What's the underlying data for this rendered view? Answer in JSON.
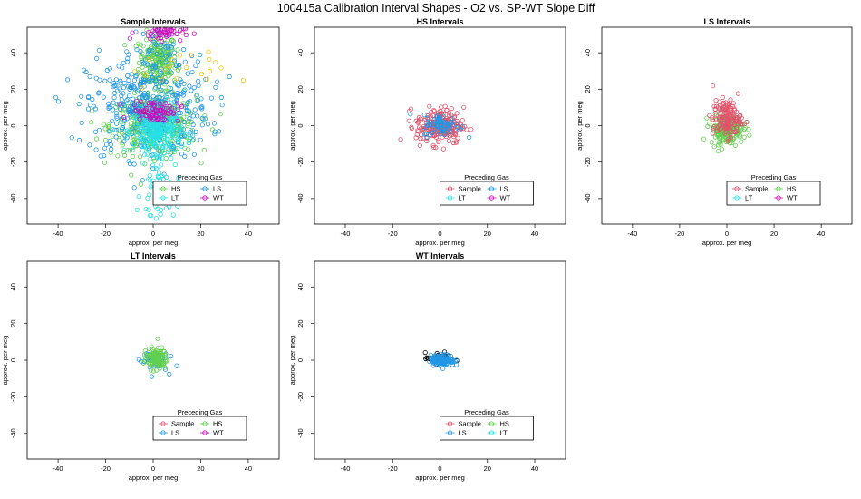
{
  "figure": {
    "title": "100415a   Calibration Interval Shapes - O2 vs. SP-WT Slope Diff"
  },
  "chart_data": [
    {
      "type": "scatter",
      "title": "Sample Intervals",
      "xlabel": "approx. per meg",
      "ylabel": "approx. per meg",
      "xlim": [
        -53,
        53
      ],
      "ylim": [
        -54,
        54
      ],
      "xticks": [
        "-40",
        "-20",
        "0",
        "20",
        "40"
      ],
      "yticks": [
        "-40",
        "-20",
        "0",
        "20",
        "40"
      ],
      "legend": {
        "title": "Preceding Gas",
        "entries": [
          "HS",
          "LS",
          "LT",
          "WT"
        ],
        "colors": [
          "#61d04f",
          "#2297e6",
          "#28e2e5",
          "#cd0bbc"
        ],
        "placement": "bottom-right"
      },
      "series": [
        {
          "name": "HS",
          "color": "#61d04f",
          "clusters": [
            {
              "cx": 2,
              "cy": 35,
              "sx": 4,
              "sy": 8,
              "n": 220
            },
            {
              "cx": 0,
              "cy": 0,
              "sx": 9,
              "sy": 8,
              "n": 380
            }
          ]
        },
        {
          "name": "LS",
          "color": "#2297e6",
          "clusters": [
            {
              "cx": -2,
              "cy": 10,
              "sx": 13,
              "sy": 14,
              "n": 420
            },
            {
              "cx": 3,
              "cy": 42,
              "sx": 6,
              "sy": 6,
              "n": 40
            }
          ]
        },
        {
          "name": "LT",
          "color": "#28e2e5",
          "clusters": [
            {
              "cx": 2,
              "cy": -3,
              "sx": 5,
              "sy": 6,
              "n": 260
            },
            {
              "cx": 3,
              "cy": -37,
              "sx": 4,
              "sy": 10,
              "n": 70
            }
          ]
        },
        {
          "name": "WT",
          "color": "#cd0bbc",
          "clusters": [
            {
              "cx": 1,
              "cy": 8,
              "sx": 5,
              "sy": 3,
              "n": 80
            },
            {
              "cx": 3,
              "cy": 51,
              "sx": 5,
              "sy": 2,
              "n": 50
            }
          ]
        },
        {
          "name": "",
          "color": "#f5c710",
          "clusters": [
            {
              "cx": 10,
              "cy": 30,
              "sx": 10,
              "sy": 5,
              "n": 20
            }
          ]
        }
      ]
    },
    {
      "type": "scatter",
      "title": "HS Intervals",
      "xlabel": "approx. per meg",
      "ylabel": "approx. per meg",
      "xlim": [
        -53,
        53
      ],
      "ylim": [
        -54,
        54
      ],
      "xticks": [
        "-40",
        "-20",
        "0",
        "20",
        "40"
      ],
      "yticks": [
        "-40",
        "-20",
        "0",
        "20",
        "40"
      ],
      "legend": {
        "title": "Preceding Gas",
        "entries": [
          "Sample",
          "LS",
          "LT",
          "WT"
        ],
        "colors": [
          "#df536b",
          "#2297e6",
          "#28e2e5",
          "#cd0bbc"
        ],
        "placement": "bottom-right"
      },
      "series": [
        {
          "name": "Sample",
          "color": "#df536b",
          "clusters": [
            {
              "cx": 0,
              "cy": 0,
              "sx": 5,
              "sy": 5,
              "n": 220
            }
          ]
        },
        {
          "name": "LS",
          "color": "#2297e6",
          "clusters": [
            {
              "cx": 1,
              "cy": 0,
              "sx": 4,
              "sy": 3,
              "n": 70
            }
          ]
        }
      ]
    },
    {
      "type": "scatter",
      "title": "LS Intervals",
      "xlabel": "approx. per meg",
      "ylabel": "approx. per meg",
      "xlim": [
        -53,
        53
      ],
      "ylim": [
        -54,
        54
      ],
      "xticks": [
        "-40",
        "-20",
        "0",
        "20",
        "40"
      ],
      "yticks": [
        "-40",
        "-20",
        "0",
        "20",
        "40"
      ],
      "legend": {
        "title": "Preceding Gas",
        "entries": [
          "Sample",
          "HS",
          "LT",
          "WT"
        ],
        "colors": [
          "#df536b",
          "#61d04f",
          "#28e2e5",
          "#cd0bbc"
        ],
        "placement": "bottom-right"
      },
      "series": [
        {
          "name": "HS",
          "color": "#61d04f",
          "clusters": [
            {
              "cx": 0,
              "cy": -2,
              "sx": 3.5,
              "sy": 4,
              "n": 180
            }
          ]
        },
        {
          "name": "Sample",
          "color": "#df536b",
          "clusters": [
            {
              "cx": 0,
              "cy": 4,
              "sx": 3,
              "sy": 5,
              "n": 150
            }
          ]
        }
      ]
    },
    {
      "type": "scatter",
      "title": "LT Intervals",
      "xlabel": "approx. per meg",
      "ylabel": "approx. per meg",
      "xlim": [
        -53,
        53
      ],
      "ylim": [
        -54,
        54
      ],
      "xticks": [
        "-40",
        "-20",
        "0",
        "20",
        "40"
      ],
      "yticks": [
        "-40",
        "-20",
        "0",
        "20",
        "40"
      ],
      "legend": {
        "title": "Preceding Gas",
        "entries": [
          "Sample",
          "HS",
          "LS",
          "WT"
        ],
        "colors": [
          "#df536b",
          "#61d04f",
          "#2297e6",
          "#cd0bbc"
        ],
        "placement": "bottom-right"
      },
      "series": [
        {
          "name": "LS",
          "color": "#2297e6",
          "clusters": [
            {
              "cx": 0,
              "cy": 0,
              "sx": 3,
              "sy": 3,
              "n": 40
            }
          ]
        },
        {
          "name": "HS",
          "color": "#61d04f",
          "clusters": [
            {
              "cx": 1,
              "cy": 1,
              "sx": 2.5,
              "sy": 3,
              "n": 110
            }
          ]
        }
      ]
    },
    {
      "type": "scatter",
      "title": "WT Intervals",
      "xlabel": "approx. per meg",
      "ylabel": "approx. per meg",
      "xlim": [
        -53,
        53
      ],
      "ylim": [
        -54,
        54
      ],
      "xticks": [
        "-40",
        "-20",
        "0",
        "20",
        "40"
      ],
      "yticks": [
        "-40",
        "-20",
        "0",
        "20",
        "40"
      ],
      "legend": {
        "title": "Preceding Gas",
        "entries": [
          "Sample",
          "HS",
          "LS",
          "LT"
        ],
        "colors": [
          "#df536b",
          "#61d04f",
          "#2297e6",
          "#28e2e5"
        ],
        "placement": "bottom-right"
      },
      "series": [
        {
          "name": "",
          "color": "#000000",
          "clusters": [
            {
              "cx": 0,
              "cy": 1,
              "sx": 3,
              "sy": 1.5,
              "n": 40
            }
          ]
        },
        {
          "name": "LS",
          "color": "#2297e6",
          "clusters": [
            {
              "cx": 1,
              "cy": 0,
              "sx": 2.5,
              "sy": 1.5,
              "n": 120
            }
          ]
        }
      ]
    }
  ]
}
